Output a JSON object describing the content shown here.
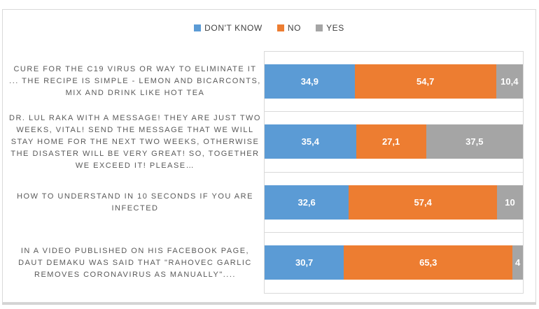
{
  "chart_data": {
    "type": "bar",
    "orientation": "horizontal",
    "stacked": true,
    "title": "",
    "xlabel": "",
    "ylabel": "",
    "xlim": [
      0,
      100
    ],
    "legend_position": "top",
    "gridlines": "category-divider-lines",
    "categories": [
      "CURE FOR THE C19 VIRUS OR WAY TO ELIMINATE IT ... THE RECIPE IS SIMPLE - LEMON AND BICARCONTS, MIX AND DRINK LIKE HOT TEA",
      "DR. LUL RAKA WITH A MESSAGE! THEY ARE JUST TWO WEEKS, VITAL! SEND THE MESSAGE THAT WE WILL STAY HOME FOR THE NEXT TWO WEEKS, OTHERWISE THE DISASTER WILL BE VERY GREAT! SO, TOGETHER WE EXCEED IT! PLEASE…",
      "HOW TO UNDERSTAND IN 10 SECONDS IF YOU ARE INFECTED",
      "IN A VIDEO PUBLISHED ON HIS FACEBOOK PAGE, DAUT DEMAKU WAS SAID THAT \"RAHOVEC GARLIC REMOVES CORONAVIRUS AS MANUALLY\"...."
    ],
    "series": [
      {
        "name": "DON'T KNOW",
        "color": "#5B9BD5",
        "values": [
          34.9,
          35.4,
          32.6,
          30.7
        ],
        "data_labels": [
          "34,9",
          "35,4",
          "32,6",
          "30,7"
        ]
      },
      {
        "name": "NO",
        "color": "#ED7D31",
        "values": [
          54.7,
          27.1,
          57.4,
          65.3
        ],
        "data_labels": [
          "54,7",
          "27,1",
          "57,4",
          "65,3"
        ]
      },
      {
        "name": "YES",
        "color": "#A5A5A5",
        "values": [
          10.4,
          37.5,
          10,
          4
        ],
        "data_labels": [
          "10,4",
          "37,5",
          "10",
          "4"
        ]
      }
    ]
  },
  "legend": {
    "items": [
      {
        "label": "DON'T KNOW",
        "color": "#5B9BD5"
      },
      {
        "label": "NO",
        "color": "#ED7D31"
      },
      {
        "label": "YES",
        "color": "#A5A5A5"
      }
    ]
  },
  "colors": {
    "frame_border": "#d9d9d9",
    "plot_border": "#d9d9d9",
    "category_text": "#595959",
    "legend_text": "#404040",
    "data_label_text": "#ffffff"
  }
}
